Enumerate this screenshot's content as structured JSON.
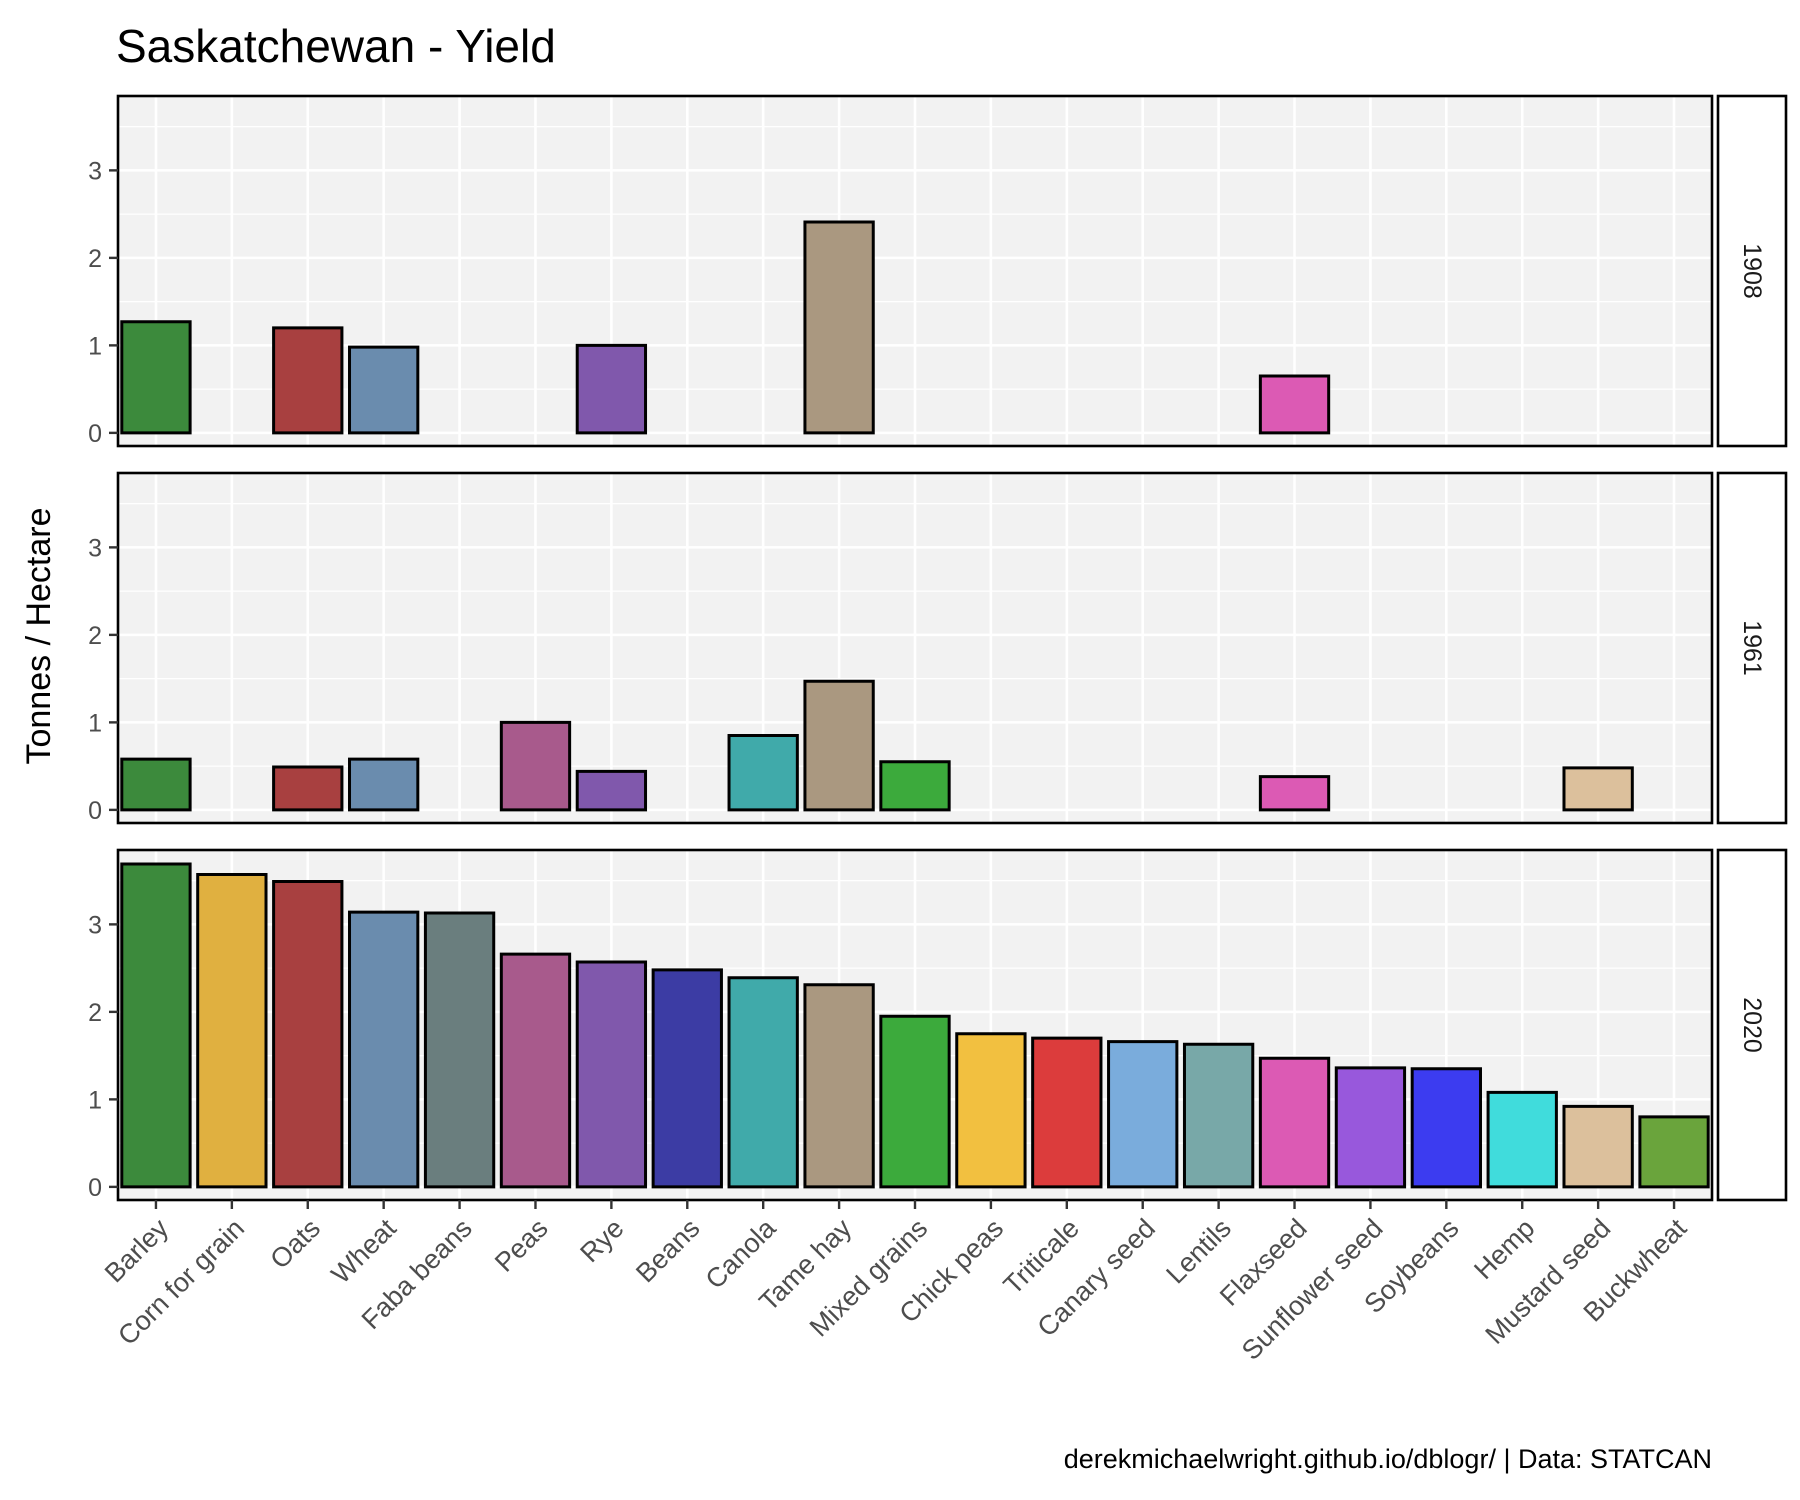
{
  "chart_data": {
    "type": "bar",
    "title": "Saskatchewan - Yield",
    "ylabel": "Tonnes / Hectare",
    "xlabel": "",
    "caption": "derekmichaelwright.github.io/dblogr/ | Data: STATCAN",
    "ylim": [
      -0.15,
      3.85
    ],
    "yticks": [
      0,
      1,
      2,
      3
    ],
    "grid": true,
    "facet_by": "year",
    "categories": [
      "Barley",
      "Corn for grain",
      "Oats",
      "Wheat",
      "Faba beans",
      "Peas",
      "Rye",
      "Beans",
      "Canola",
      "Tame hay",
      "Mixed grains",
      "Chick peas",
      "Triticale",
      "Canary seed",
      "Lentils",
      "Flaxseed",
      "Sunflower seed",
      "Soybeans",
      "Hemp",
      "Mustard seed",
      "Buckwheat"
    ],
    "colors": [
      "#3c8a3c",
      "#e0b040",
      "#a84040",
      "#6a8cae",
      "#6a7e7e",
      "#a85a8c",
      "#8058ac",
      "#3c3ca4",
      "#40aaaa",
      "#aa9880",
      "#3caa3c",
      "#f2c040",
      "#dc3c3c",
      "#7aacdc",
      "#78a8a8",
      "#dc5ab4",
      "#9858dc",
      "#3c3cf0",
      "#40dcdc",
      "#dcc09c",
      "#6aa43c"
    ],
    "panels": [
      {
        "strip": "1908",
        "values": [
          1.27,
          null,
          1.2,
          0.98,
          null,
          null,
          1.0,
          null,
          null,
          2.41,
          null,
          null,
          null,
          null,
          null,
          0.65,
          null,
          null,
          null,
          null,
          null
        ]
      },
      {
        "strip": "1961",
        "values": [
          0.58,
          null,
          0.49,
          0.58,
          null,
          1.0,
          0.44,
          null,
          0.85,
          1.47,
          0.55,
          null,
          null,
          null,
          null,
          0.38,
          0.0,
          null,
          null,
          0.48,
          null
        ]
      },
      {
        "strip": "2020",
        "values": [
          3.69,
          3.57,
          3.49,
          3.14,
          3.13,
          2.66,
          2.57,
          2.48,
          2.39,
          2.31,
          1.95,
          1.75,
          1.7,
          1.66,
          1.63,
          1.47,
          1.36,
          1.35,
          1.08,
          0.92,
          0.8
        ]
      }
    ]
  }
}
